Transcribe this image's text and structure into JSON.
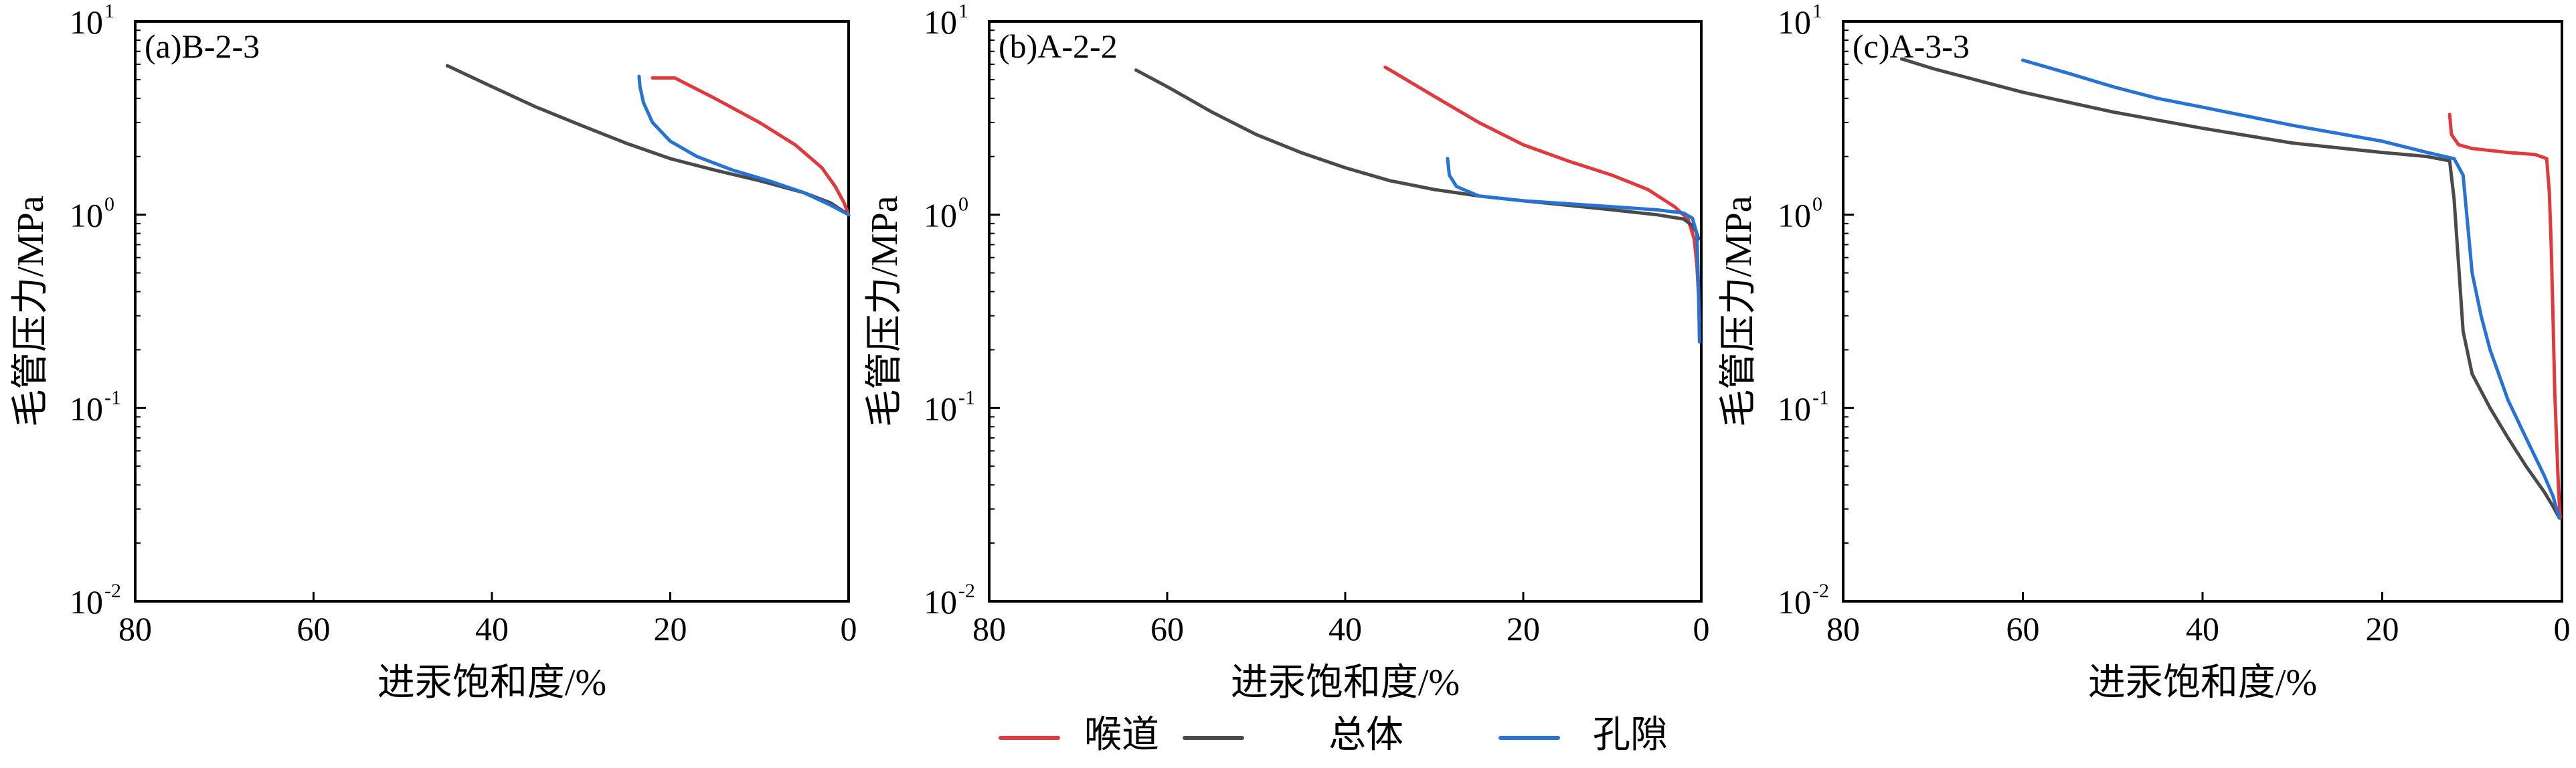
{
  "figure": {
    "legend": [
      {
        "name": "喉道",
        "color": "#e0393e"
      },
      {
        "name": "总体",
        "color": "#4a4a4a"
      },
      {
        "name": "孔隙",
        "color": "#2673d4"
      }
    ]
  },
  "chart_data": [
    {
      "type": "line",
      "panel_label": "(a)B-2-3",
      "xlabel": "进汞饱和度/%",
      "ylabel": "毛管压力/MPa",
      "xlim": [
        80,
        0
      ],
      "ylim": [
        0.01,
        10
      ],
      "yscale": "log",
      "xticks": [
        80,
        60,
        40,
        20,
        0
      ],
      "series": [
        {
          "name": "喉道",
          "color": "#e0393e",
          "x": [
            22,
            19.5,
            15,
            10,
            6,
            3,
            1.5,
            0.5,
            0
          ],
          "y": [
            5.1,
            5.1,
            4.0,
            3.0,
            2.3,
            1.75,
            1.4,
            1.15,
            1.0
          ]
        },
        {
          "name": "总体",
          "color": "#4a4a4a",
          "x": [
            45,
            40,
            35,
            30,
            25,
            20,
            15,
            10,
            5,
            2,
            0
          ],
          "y": [
            5.9,
            4.6,
            3.6,
            2.9,
            2.35,
            1.95,
            1.7,
            1.5,
            1.3,
            1.15,
            1.0
          ]
        },
        {
          "name": "孔隙",
          "color": "#2673d4",
          "x": [
            23.5,
            23.4,
            23,
            22,
            20,
            17,
            13,
            9,
            5,
            2,
            0
          ],
          "y": [
            5.2,
            4.6,
            3.8,
            3.0,
            2.4,
            2.0,
            1.7,
            1.5,
            1.3,
            1.12,
            1.0
          ]
        }
      ]
    },
    {
      "type": "line",
      "panel_label": "(b)A-2-2",
      "xlabel": "进汞饱和度/%",
      "ylabel": "毛管压力/MPa",
      "xlim": [
        80,
        0
      ],
      "ylim": [
        0.01,
        10
      ],
      "yscale": "log",
      "xticks": [
        80,
        60,
        40,
        20,
        0
      ],
      "series": [
        {
          "name": "喉道",
          "color": "#e0393e",
          "x": [
            35.5,
            30,
            25,
            20,
            15,
            10,
            6,
            3,
            1.5,
            0.8,
            0.5,
            0.3,
            0.2
          ],
          "y": [
            5.8,
            4.1,
            3.0,
            2.3,
            1.9,
            1.6,
            1.35,
            1.1,
            0.95,
            0.75,
            0.55,
            0.38,
            0.28
          ]
        },
        {
          "name": "总体",
          "color": "#4a4a4a",
          "x": [
            63.5,
            60,
            55,
            50,
            45,
            40,
            35,
            30,
            25,
            20,
            15,
            10,
            5,
            2,
            1,
            0.5,
            0.3
          ],
          "y": [
            5.6,
            4.6,
            3.4,
            2.6,
            2.1,
            1.75,
            1.5,
            1.35,
            1.25,
            1.18,
            1.12,
            1.06,
            1.0,
            0.95,
            0.88,
            0.8,
            0.75
          ]
        },
        {
          "name": "孔隙",
          "color": "#2673d4",
          "x": [
            28.5,
            28.3,
            27.5,
            25,
            20,
            15,
            10,
            5,
            2,
            1,
            0.5,
            0.3,
            0.2
          ],
          "y": [
            1.95,
            1.6,
            1.4,
            1.25,
            1.18,
            1.14,
            1.1,
            1.06,
            1.02,
            0.96,
            0.8,
            0.4,
            0.22
          ]
        }
      ]
    },
    {
      "type": "line",
      "panel_label": "(c)A-3-3",
      "xlabel": "进汞饱和度/%",
      "ylabel": "毛管压力/MPa",
      "xlim": [
        80,
        0
      ],
      "ylim": [
        0.01,
        10
      ],
      "yscale": "log",
      "xticks": [
        80,
        60,
        40,
        20,
        0
      ],
      "series": [
        {
          "name": "喉道",
          "color": "#e0393e",
          "x": [
            12.5,
            12.3,
            11.5,
            10,
            6,
            3,
            1.7,
            1.4,
            1.2,
            1.0,
            0.8,
            0.6,
            0.4,
            0.2
          ],
          "y": [
            3.3,
            2.6,
            2.3,
            2.2,
            2.1,
            2.05,
            1.95,
            1.3,
            0.7,
            0.3,
            0.12,
            0.07,
            0.04,
            0.027
          ]
        },
        {
          "name": "总体",
          "color": "#4a4a4a",
          "x": [
            73.5,
            70,
            60,
            50,
            40,
            30,
            20,
            15,
            12.5,
            12,
            11.5,
            11,
            10,
            8,
            6,
            4,
            2,
            1,
            0.3
          ],
          "y": [
            6.4,
            5.7,
            4.3,
            3.4,
            2.8,
            2.35,
            2.1,
            2.0,
            1.9,
            1.2,
            0.55,
            0.25,
            0.15,
            0.1,
            0.07,
            0.05,
            0.037,
            0.031,
            0.027
          ]
        },
        {
          "name": "孔隙",
          "color": "#2673d4",
          "x": [
            60,
            55,
            50,
            45,
            40,
            30,
            20,
            15,
            12,
            11,
            10.5,
            10,
            9,
            8,
            6,
            4,
            2,
            1,
            0.3
          ],
          "y": [
            6.3,
            5.4,
            4.6,
            4.0,
            3.6,
            2.9,
            2.4,
            2.1,
            1.95,
            1.6,
            0.9,
            0.5,
            0.3,
            0.2,
            0.11,
            0.07,
            0.045,
            0.035,
            0.027
          ]
        }
      ]
    }
  ]
}
